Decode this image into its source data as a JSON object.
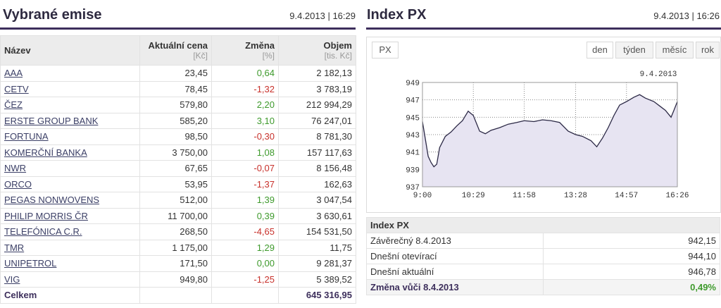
{
  "left": {
    "title": "Vybrané emise",
    "timestamp": "9.4.2013 | 16:29",
    "table": {
      "columns": [
        {
          "name": "Název"
        },
        {
          "name": "Aktuální cena",
          "unit": "[Kč]"
        },
        {
          "name": "Změna",
          "unit": "[%]"
        },
        {
          "name": "Objem",
          "unit": "[tis. Kč]"
        }
      ],
      "rows": [
        [
          "AAA",
          "23,45",
          "0,64",
          "2 182,13"
        ],
        [
          "CETV",
          "78,45",
          "-1,32",
          "3 783,19"
        ],
        [
          "ČEZ",
          "579,80",
          "2,20",
          "212 994,29"
        ],
        [
          "ERSTE GROUP BANK",
          "585,20",
          "3,10",
          "76 247,01"
        ],
        [
          "FORTUNA",
          "98,50",
          "-0,30",
          "8 781,30"
        ],
        [
          "KOMERČNÍ BANKA",
          "3 750,00",
          "1,08",
          "157 117,63"
        ],
        [
          "NWR",
          "67,65",
          "-0,07",
          "8 156,48"
        ],
        [
          "ORCO",
          "53,95",
          "-1,37",
          "162,63"
        ],
        [
          "PEGAS NONWOVENS",
          "512,00",
          "1,39",
          "3 047,54"
        ],
        [
          "PHILIP MORRIS ČR",
          "11 700,00",
          "0,39",
          "3 630,61"
        ],
        [
          "TELEFÓNICA C.R.",
          "268,50",
          "-4,65",
          "154 531,50"
        ],
        [
          "TMR",
          "1 175,00",
          "1,29",
          "11,75"
        ],
        [
          "UNIPETROL",
          "171,50",
          "0,00",
          "9 281,37"
        ],
        [
          "VIG",
          "949,80",
          "-1,25",
          "5 389,52"
        ]
      ],
      "total": {
        "label": "Celkem",
        "value": "645 316,95"
      }
    }
  },
  "right": {
    "title": "Index PX",
    "timestamp": "9.4.2013 | 16:26",
    "tab": "PX",
    "periods": [
      "den",
      "týden",
      "měsíc",
      "rok"
    ],
    "summary": {
      "title": "Index PX",
      "rows": [
        [
          "Závěrečný 8.4.2013",
          "942,15"
        ],
        [
          "Dnešní otevírací",
          "944,10"
        ],
        [
          "Dnešní aktuální",
          "946,78"
        ],
        [
          "Změna vůči 8.4.2013",
          "0,49%"
        ]
      ]
    }
  },
  "chart_data": {
    "type": "line",
    "annotation": "9.4.2013",
    "x": [
      "9:00",
      "9:05",
      "9:10",
      "9:15",
      "9:20",
      "9:25",
      "9:30",
      "9:40",
      "9:50",
      "10:00",
      "10:10",
      "10:20",
      "10:29",
      "10:40",
      "10:50",
      "11:00",
      "11:15",
      "11:30",
      "11:45",
      "11:58",
      "12:15",
      "12:30",
      "12:45",
      "13:00",
      "13:15",
      "13:28",
      "13:40",
      "13:55",
      "14:05",
      "14:15",
      "14:25",
      "14:35",
      "14:45",
      "14:57",
      "15:10",
      "15:20",
      "15:30",
      "15:45",
      "15:55",
      "16:05",
      "16:15",
      "16:20",
      "16:26"
    ],
    "series": [
      {
        "color": "#2b2845",
        "fill": "#e7e4f2",
        "values": [
          944.5,
          942.5,
          940.5,
          939.8,
          939.3,
          939.6,
          941.5,
          942.8,
          943.3,
          944.0,
          944.6,
          945.7,
          945.2,
          943.4,
          943.1,
          943.5,
          943.8,
          944.2,
          944.4,
          944.6,
          944.5,
          944.7,
          944.6,
          944.4,
          943.4,
          943.0,
          942.8,
          942.3,
          941.6,
          942.6,
          943.8,
          945.2,
          946.4,
          946.8,
          947.3,
          947.6,
          947.2,
          946.8,
          946.3,
          945.8,
          945.0,
          945.8,
          946.8
        ]
      }
    ],
    "xlim": [
      "9:00",
      "16:26"
    ],
    "xticks": [
      "9:00",
      "10:29",
      "11:58",
      "13:28",
      "14:57",
      "16:26"
    ],
    "ylim": [
      937,
      949
    ],
    "yticks": [
      937,
      939,
      941,
      943,
      945,
      947,
      949
    ],
    "grid": true
  }
}
